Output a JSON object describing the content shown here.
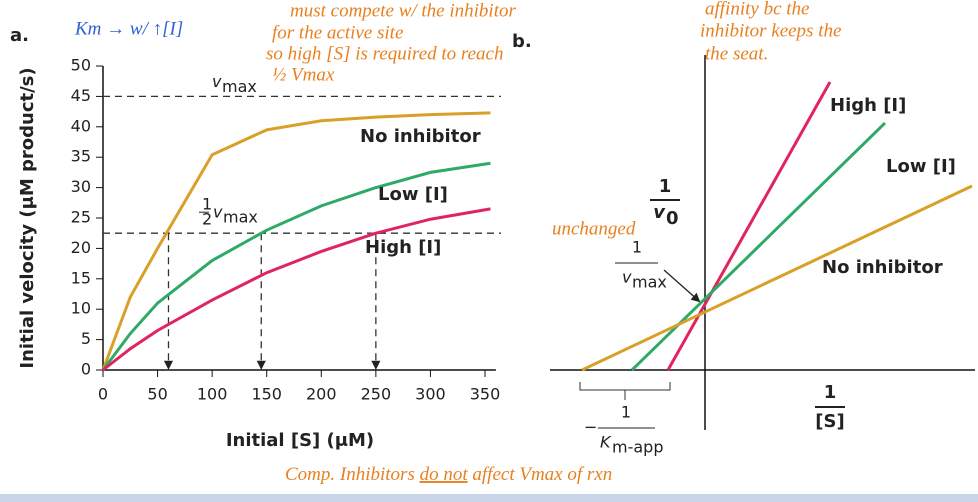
{
  "chart_data": {
    "type": "line",
    "panel_label": "a.",
    "y_label": "Initial velocity (μM product/s)",
    "x_label": "Initial [S] (μM)",
    "xlim": [
      0,
      360
    ],
    "ylim": [
      0,
      50
    ],
    "xticks": [
      0,
      50,
      100,
      150,
      200,
      250,
      300,
      350
    ],
    "yticks": [
      0,
      5,
      10,
      15,
      20,
      25,
      30,
      35,
      40,
      45,
      50
    ],
    "x": [
      0,
      25,
      50,
      100,
      150,
      200,
      250,
      300,
      355
    ],
    "series": [
      {
        "name": "No inhibitor",
        "color": "#d9a028",
        "values": [
          0,
          12,
          20,
          35.4,
          39.5,
          41,
          41.6,
          42,
          42.3
        ]
      },
      {
        "name": "Low [I]",
        "color": "#2eaa68",
        "values": [
          0,
          6,
          11,
          18,
          23,
          27,
          30,
          32.5,
          34
        ]
      },
      {
        "name": "High [I]",
        "color": "#e0245e",
        "values": [
          0,
          3.5,
          6.5,
          11.5,
          16,
          19.5,
          22.5,
          24.8,
          26.5
        ]
      }
    ],
    "vmax": 45,
    "half_vmax": 22.5,
    "km": [
      60,
      145,
      250
    ],
    "vmax_label": {
      "v": "v",
      "sub": "max"
    },
    "half_vmax_label": {
      "num": "1",
      "den": "2",
      "v": "v",
      "sub": "max"
    }
  },
  "panel_b": {
    "panel_label": "b.",
    "y_label": {
      "num": "1",
      "v": "v",
      "sub": "0"
    },
    "x_label": {
      "num": "1",
      "den": "[S]"
    },
    "intercept_label": {
      "num": "1",
      "v": "v",
      "sub": "max"
    },
    "x_intercept_label": {
      "sign": "−",
      "num": "1",
      "k": "K",
      "sub": "m-app"
    },
    "lines": [
      {
        "name": "High [I]",
        "color": "#e0245e"
      },
      {
        "name": "Low [I]",
        "color": "#2eaa68"
      },
      {
        "name": "No inhibitor",
        "color": "#d9a028"
      }
    ]
  },
  "annotations": {
    "km_note": "Km → w/ ↑[I]",
    "compete": [
      "must compete w/ the inhibitor",
      "for the active site",
      "so high [S] is required to reach",
      "½ Vmax"
    ],
    "affinity": [
      "affinity bc the",
      "inhibitor keeps the",
      "the seat."
    ],
    "unchanged": "unchanged",
    "bottom": [
      "Comp. Inhibitors ",
      "do not",
      " affect Vmax of rxn"
    ]
  }
}
